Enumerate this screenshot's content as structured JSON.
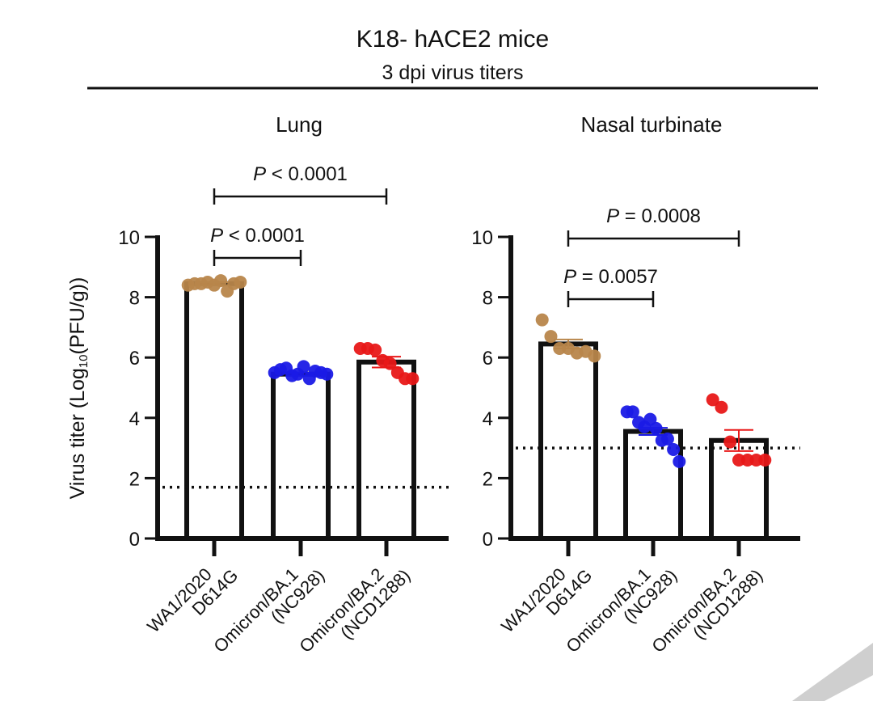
{
  "figure": {
    "title": "K18- hACE2 mice",
    "subtitle": "3 dpi virus titers",
    "ylabel_main": "Virus titer (Log",
    "ylabel_sub": "10",
    "ylabel_tail": "(PFU/g))"
  },
  "chart_data": [
    {
      "type": "bar",
      "title": "Lung",
      "xlabel": "",
      "ylabel": "Virus titer (Log10(PFU/g))",
      "ylim": [
        0,
        10
      ],
      "yticks": [
        0,
        2,
        4,
        6,
        8,
        10
      ],
      "grid": false,
      "categories": [
        [
          "WA1/2020",
          "D614G"
        ],
        [
          "Omicron/BA.1",
          "(NC928)"
        ],
        [
          "Omicron/BA.2",
          "(NCD1288)"
        ]
      ],
      "colors": [
        "#B8864B",
        "#1A1AE6",
        "#E81818"
      ],
      "values": [
        8.45,
        5.45,
        5.85
      ],
      "error_sem": [
        0.05,
        0.05,
        0.18
      ],
      "points": [
        [
          8.4,
          8.45,
          8.45,
          8.5,
          8.4,
          8.55,
          8.2,
          8.45,
          8.5
        ],
        [
          5.5,
          5.6,
          5.65,
          5.4,
          5.45,
          5.7,
          5.3,
          5.55,
          5.5,
          5.45
        ],
        [
          6.3,
          6.3,
          6.25,
          5.9,
          5.8,
          5.5,
          5.3,
          5.3
        ]
      ],
      "limit_of_detection": 1.7,
      "comparisons": [
        {
          "from": 0,
          "to": 1,
          "label": "P < 0.0001",
          "level": 1
        },
        {
          "from": 0,
          "to": 2,
          "label": "P < 0.0001",
          "level": 2
        }
      ]
    },
    {
      "type": "bar",
      "title": "Nasal turbinate",
      "xlabel": "",
      "ylabel": "",
      "ylim": [
        0,
        10
      ],
      "yticks": [
        0,
        2,
        4,
        6,
        8,
        10
      ],
      "grid": false,
      "categories": [
        [
          "WA1/2020",
          "D614G"
        ],
        [
          "Omicron/BA.1",
          "(NC928)"
        ],
        [
          "Omicron/BA.2",
          "(NCD1288)"
        ]
      ],
      "colors": [
        "#B8864B",
        "#1A1AE6",
        "#E81818"
      ],
      "values": [
        6.45,
        3.55,
        3.25
      ],
      "error_sem": [
        0.15,
        0.12,
        0.35
      ],
      "points": [
        [
          7.25,
          6.7,
          6.3,
          6.3,
          6.15,
          6.2,
          6.05
        ],
        [
          4.2,
          4.2,
          3.85,
          3.7,
          3.95,
          3.65,
          3.25,
          3.3,
          2.95,
          2.55
        ],
        [
          4.6,
          4.35,
          3.2,
          2.6,
          2.6,
          2.6,
          2.6
        ]
      ],
      "limit_of_detection": 3.0,
      "comparisons": [
        {
          "from": 0,
          "to": 1,
          "label": "P = 0.0057",
          "level": 1
        },
        {
          "from": 0,
          "to": 2,
          "label": "P = 0.0008",
          "level": 2
        }
      ]
    }
  ]
}
